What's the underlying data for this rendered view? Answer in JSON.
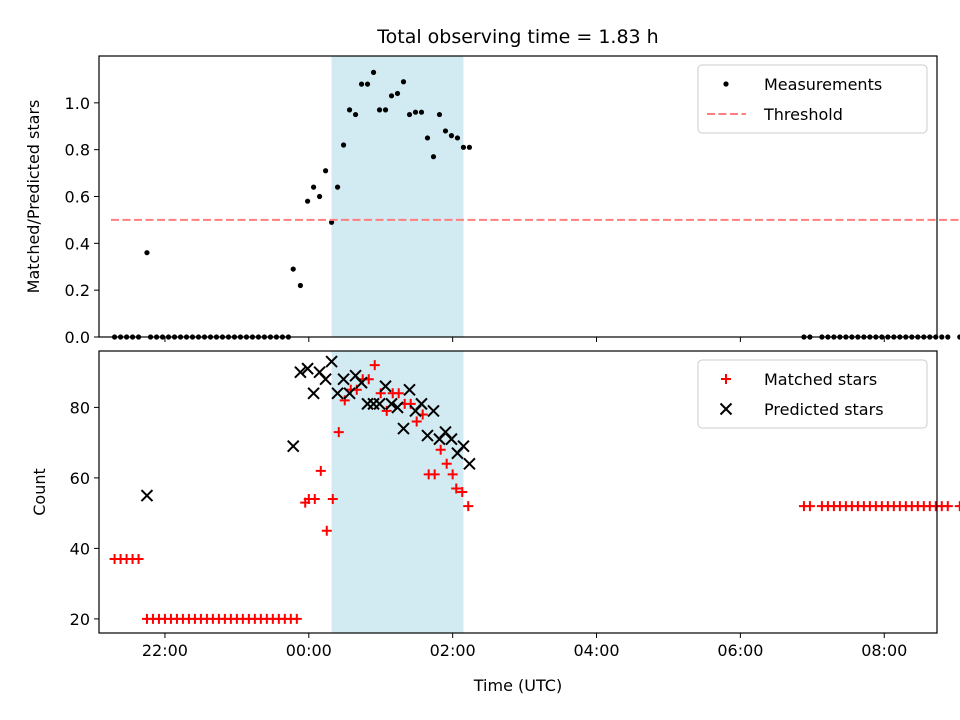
{
  "title": "Total observing time = 1.83 h",
  "xlabel": "Time (UTC)",
  "colors": {
    "measurements": "#000000",
    "threshold": "#ff7f7f",
    "matched": "#ff0000",
    "predicted": "#000000",
    "span_fill": "#add8e6"
  },
  "chart_data": [
    {
      "type": "scatter",
      "ylabel": "Matched/Predicted stars",
      "xlim": [
        "21:05",
        "08:44+1"
      ],
      "ylim": [
        0,
        1.2
      ],
      "xticks": [
        "22:00",
        "00:00",
        "02:00",
        "04:00",
        "06:00",
        "08:00"
      ],
      "yticks": [
        "0.0",
        "0.2",
        "0.4",
        "0.6",
        "0.8",
        "1.0"
      ],
      "shaded_span": [
        "00:19",
        "02:09"
      ],
      "legend_position": "top-right",
      "series": [
        {
          "name": "Measurements",
          "marker": "dot",
          "points": [
            [
              "21:18",
              0
            ],
            [
              "21:23",
              0
            ],
            [
              "21:28",
              0
            ],
            [
              "21:33",
              0
            ],
            [
              "21:38",
              0
            ],
            [
              "21:45",
              0.36
            ],
            [
              "21:48",
              0
            ],
            [
              "21:53",
              0
            ],
            [
              "21:58",
              0
            ],
            [
              "22:03",
              0
            ],
            [
              "22:08",
              0
            ],
            [
              "22:13",
              0
            ],
            [
              "22:18",
              0
            ],
            [
              "22:23",
              0
            ],
            [
              "22:28",
              0
            ],
            [
              "22:33",
              0
            ],
            [
              "22:38",
              0
            ],
            [
              "22:43",
              0
            ],
            [
              "22:48",
              0
            ],
            [
              "22:53",
              0
            ],
            [
              "22:58",
              0
            ],
            [
              "23:03",
              0
            ],
            [
              "23:08",
              0
            ],
            [
              "23:13",
              0
            ],
            [
              "23:18",
              0
            ],
            [
              "23:23",
              0
            ],
            [
              "23:28",
              0
            ],
            [
              "23:33",
              0
            ],
            [
              "23:38",
              0
            ],
            [
              "23:43",
              0
            ],
            [
              "23:47",
              0.29
            ],
            [
              "23:53",
              0.22
            ],
            [
              "23:59",
              0.58
            ],
            [
              "00:04",
              0.64
            ],
            [
              "00:09",
              0.6
            ],
            [
              "00:14",
              0.71
            ],
            [
              "00:19",
              0.49
            ],
            [
              "00:24",
              0.64
            ],
            [
              "00:29",
              0.82
            ],
            [
              "00:34",
              0.97
            ],
            [
              "00:39",
              0.95
            ],
            [
              "00:44",
              1.08
            ],
            [
              "00:49",
              1.08
            ],
            [
              "00:54",
              1.13
            ],
            [
              "00:59",
              0.97
            ],
            [
              "01:04",
              0.97
            ],
            [
              "01:09",
              1.03
            ],
            [
              "01:14",
              1.04
            ],
            [
              "01:19",
              1.09
            ],
            [
              "01:24",
              0.95
            ],
            [
              "01:29",
              0.96
            ],
            [
              "01:34",
              0.96
            ],
            [
              "01:39",
              0.85
            ],
            [
              "01:44",
              0.77
            ],
            [
              "01:49",
              0.95
            ],
            [
              "01:54",
              0.88
            ],
            [
              "01:59",
              0.86
            ],
            [
              "02:04",
              0.85
            ],
            [
              "02:09",
              0.81
            ],
            [
              "02:14",
              0.81
            ],
            [
              "06:53",
              0
            ],
            [
              "06:58",
              0
            ],
            [
              "07:08",
              0
            ],
            [
              "07:13",
              0
            ],
            [
              "07:18",
              0
            ],
            [
              "07:23",
              0
            ],
            [
              "07:28",
              0
            ],
            [
              "07:33",
              0
            ],
            [
              "07:38",
              0
            ],
            [
              "07:43",
              0
            ],
            [
              "07:48",
              0
            ],
            [
              "07:53",
              0
            ],
            [
              "07:58",
              0
            ],
            [
              "08:03",
              0
            ],
            [
              "08:08",
              0
            ],
            [
              "08:13",
              0
            ],
            [
              "08:18",
              0
            ],
            [
              "08:23",
              0
            ],
            [
              "08:28",
              0
            ],
            [
              "08:33",
              0
            ],
            [
              "08:38",
              0
            ],
            [
              "08:43",
              0
            ],
            [
              "08:48",
              0
            ],
            [
              "08:53",
              0
            ],
            [
              "09:03",
              0
            ],
            [
              "09:08",
              0
            ],
            [
              "09:13",
              0
            ]
          ]
        },
        {
          "name": "Threshold",
          "style": "dashed",
          "x_range": [
            "21:15",
            "09:15"
          ],
          "value": 0.5
        }
      ]
    },
    {
      "type": "scatter",
      "ylabel": "Count",
      "xlim": [
        "21:05",
        "08:44+1"
      ],
      "ylim": [
        16,
        96
      ],
      "xticks": [
        "22:00",
        "00:00",
        "02:00",
        "04:00",
        "06:00",
        "08:00"
      ],
      "yticks": [
        "20",
        "40",
        "60",
        "80"
      ],
      "shaded_span": [
        "00:19",
        "02:09"
      ],
      "legend_position": "top-right",
      "series": [
        {
          "name": "Matched stars",
          "marker": "plus",
          "points": [
            [
              "21:18",
              37
            ],
            [
              "21:23",
              37
            ],
            [
              "21:28",
              37
            ],
            [
              "21:33",
              37
            ],
            [
              "21:38",
              37
            ],
            [
              "21:45",
              20
            ],
            [
              "21:50",
              20
            ],
            [
              "21:55",
              20
            ],
            [
              "22:00",
              20
            ],
            [
              "22:05",
              20
            ],
            [
              "22:10",
              20
            ],
            [
              "22:15",
              20
            ],
            [
              "22:20",
              20
            ],
            [
              "22:25",
              20
            ],
            [
              "22:30",
              20
            ],
            [
              "22:35",
              20
            ],
            [
              "22:40",
              20
            ],
            [
              "22:45",
              20
            ],
            [
              "22:50",
              20
            ],
            [
              "22:55",
              20
            ],
            [
              "23:00",
              20
            ],
            [
              "23:05",
              20
            ],
            [
              "23:10",
              20
            ],
            [
              "23:15",
              20
            ],
            [
              "23:20",
              20
            ],
            [
              "23:25",
              20
            ],
            [
              "23:30",
              20
            ],
            [
              "23:35",
              20
            ],
            [
              "23:40",
              20
            ],
            [
              "23:45",
              20
            ],
            [
              "23:50",
              20
            ],
            [
              "23:57",
              53
            ],
            [
              "00:00",
              54
            ],
            [
              "00:05",
              54
            ],
            [
              "00:10",
              62
            ],
            [
              "00:15",
              45
            ],
            [
              "00:20",
              54
            ],
            [
              "00:25",
              73
            ],
            [
              "00:30",
              82
            ],
            [
              "00:35",
              85
            ],
            [
              "00:40",
              85
            ],
            [
              "00:45",
              88
            ],
            [
              "00:50",
              88
            ],
            [
              "00:55",
              92
            ],
            [
              "01:00",
              84
            ],
            [
              "01:05",
              79
            ],
            [
              "01:10",
              84
            ],
            [
              "01:15",
              84
            ],
            [
              "01:20",
              81
            ],
            [
              "01:25",
              81
            ],
            [
              "01:30",
              76
            ],
            [
              "01:35",
              78
            ],
            [
              "01:40",
              61
            ],
            [
              "01:45",
              61
            ],
            [
              "01:50",
              68
            ],
            [
              "01:55",
              64
            ],
            [
              "02:00",
              61
            ],
            [
              "02:03",
              57
            ],
            [
              "02:08",
              56
            ],
            [
              "02:13",
              52
            ],
            [
              "06:53",
              52
            ],
            [
              "06:58",
              52
            ],
            [
              "07:08",
              52
            ],
            [
              "07:13",
              52
            ],
            [
              "07:18",
              52
            ],
            [
              "07:23",
              52
            ],
            [
              "07:28",
              52
            ],
            [
              "07:33",
              52
            ],
            [
              "07:38",
              52
            ],
            [
              "07:43",
              52
            ],
            [
              "07:48",
              52
            ],
            [
              "07:53",
              52
            ],
            [
              "07:58",
              52
            ],
            [
              "08:03",
              52
            ],
            [
              "08:08",
              52
            ],
            [
              "08:13",
              52
            ],
            [
              "08:18",
              52
            ],
            [
              "08:23",
              52
            ],
            [
              "08:28",
              52
            ],
            [
              "08:33",
              52
            ],
            [
              "08:38",
              52
            ],
            [
              "08:43",
              52
            ],
            [
              "08:48",
              52
            ],
            [
              "08:53",
              52
            ],
            [
              "09:03",
              52
            ],
            [
              "09:08",
              52
            ],
            [
              "09:13",
              52
            ]
          ]
        },
        {
          "name": "Predicted stars",
          "marker": "x",
          "points": [
            [
              "21:45",
              55
            ],
            [
              "23:47",
              69
            ],
            [
              "23:53",
              90
            ],
            [
              "23:59",
              91
            ],
            [
              "00:04",
              84
            ],
            [
              "00:09",
              90
            ],
            [
              "00:14",
              88
            ],
            [
              "00:19",
              93
            ],
            [
              "00:24",
              84
            ],
            [
              "00:29",
              88
            ],
            [
              "00:34",
              84
            ],
            [
              "00:39",
              89
            ],
            [
              "00:44",
              87
            ],
            [
              "00:49",
              81
            ],
            [
              "00:54",
              81
            ],
            [
              "00:59",
              81
            ],
            [
              "01:04",
              86
            ],
            [
              "01:09",
              81
            ],
            [
              "01:14",
              80
            ],
            [
              "01:19",
              74
            ],
            [
              "01:24",
              85
            ],
            [
              "01:29",
              79
            ],
            [
              "01:34",
              81
            ],
            [
              "01:39",
              72
            ],
            [
              "01:44",
              79
            ],
            [
              "01:49",
              71
            ],
            [
              "01:54",
              73
            ],
            [
              "01:59",
              71
            ],
            [
              "02:04",
              67
            ],
            [
              "02:09",
              69
            ],
            [
              "02:14",
              64
            ]
          ]
        }
      ]
    }
  ]
}
